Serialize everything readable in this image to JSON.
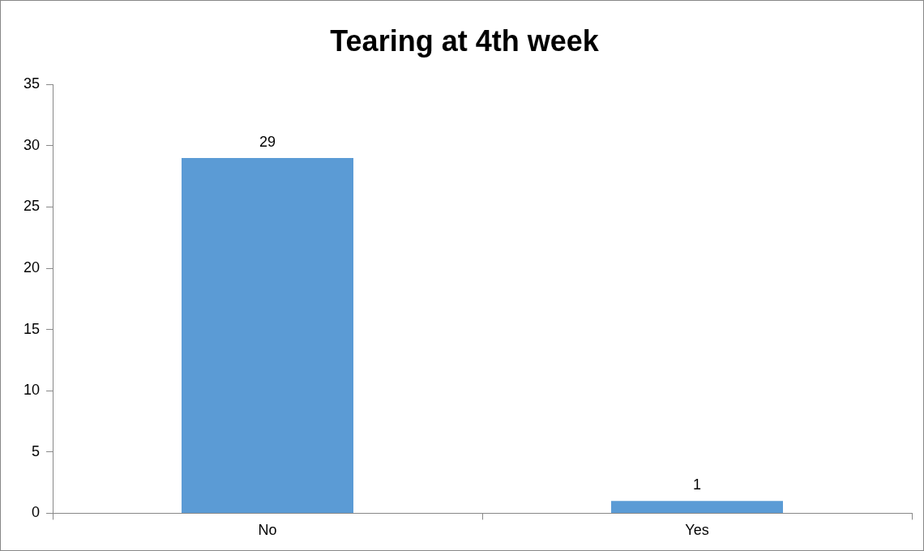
{
  "chart_data": {
    "type": "bar",
    "title": "Tearing at 4th week",
    "categories": [
      "No",
      "Yes"
    ],
    "values": [
      29,
      1
    ],
    "color": "#5b9bd5",
    "ylim": [
      0,
      35
    ],
    "yticks": [
      0,
      5,
      10,
      15,
      20,
      25,
      30,
      35
    ],
    "grid": false,
    "legend": false,
    "data_labels": true
  }
}
